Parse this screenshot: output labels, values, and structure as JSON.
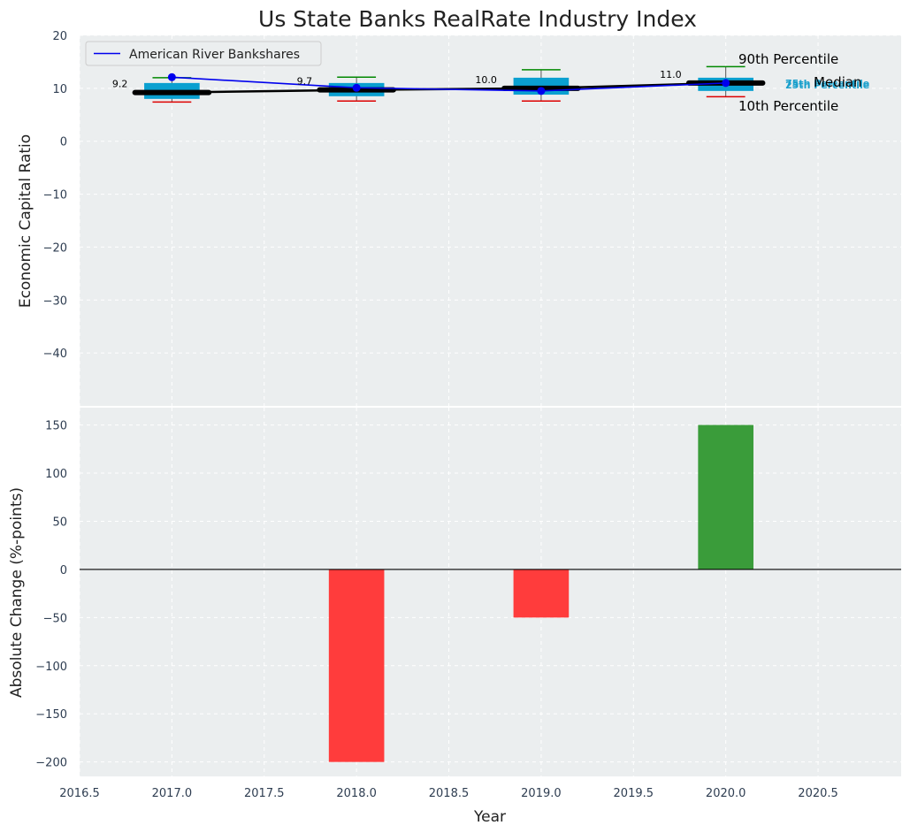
{
  "chart_data": [
    {
      "type": "box",
      "title": "Us State Banks RealRate Industry Index",
      "xlabel": "",
      "ylabel": "Economic Capital Ratio",
      "xlim": [
        2016.5,
        2020.95
      ],
      "ylim": [
        -50,
        20
      ],
      "yticks": [
        20,
        10,
        0,
        -10,
        -20,
        -30,
        -40
      ],
      "grid": true,
      "boxes": [
        {
          "x": 2017.0,
          "p10": 7.4,
          "p25": 8.0,
          "median": 9.2,
          "p75": 11.0,
          "p90": 12.0
        },
        {
          "x": 2018.0,
          "p10": 7.6,
          "p25": 8.5,
          "median": 9.7,
          "p75": 11.0,
          "p90": 12.1
        },
        {
          "x": 2019.0,
          "p10": 7.6,
          "p25": 8.8,
          "median": 10.0,
          "p75": 12.0,
          "p90": 13.5
        },
        {
          "x": 2020.0,
          "p10": 8.4,
          "p25": 9.5,
          "median": 11.0,
          "p75": 12.0,
          "p90": 14.1
        }
      ],
      "median_labels": [
        "9.2",
        "9.7",
        "10.0",
        "11.0"
      ],
      "series": [
        {
          "name": "American River Bankshares",
          "x": [
            2017,
            2018,
            2019,
            2020
          ],
          "values": [
            12.1,
            10.1,
            9.5,
            11.0
          ]
        }
      ],
      "median_line": {
        "x": [
          2017,
          2018,
          2019,
          2020
        ],
        "values": [
          9.2,
          9.7,
          10.0,
          11.0
        ]
      },
      "percentile_labels": {
        "p90": "90th Percentile",
        "median": "Median",
        "p10": "10th Percentile",
        "p75": "75th Percentile",
        "p25": "25th Percentile"
      },
      "legend_position": "top-left"
    },
    {
      "type": "bar",
      "xlabel": "Year",
      "ylabel": "Absolute Change (%-points)",
      "xlim": [
        2016.5,
        2020.95
      ],
      "ylim": [
        -215,
        168
      ],
      "yticks": [
        150,
        100,
        50,
        0,
        -50,
        -100,
        -150,
        -200
      ],
      "xticks": [
        "2016.5",
        "2017.0",
        "2017.5",
        "2018.0",
        "2018.5",
        "2019.0",
        "2019.5",
        "2020.0",
        "2020.5"
      ],
      "categories": [
        2018,
        2019,
        2020
      ],
      "values": [
        -200,
        -50,
        150
      ],
      "colors": {
        "negative": "#ff3c3c",
        "positive": "#3a9c3a"
      },
      "grid": true
    }
  ],
  "colors": {
    "panel_bg": "#ebeeef",
    "box": "#0aa0d0",
    "company_line": "#0000ee",
    "median_line": "#000000",
    "whisker_top": "#008800",
    "whisker_bottom": "#dd0000"
  }
}
